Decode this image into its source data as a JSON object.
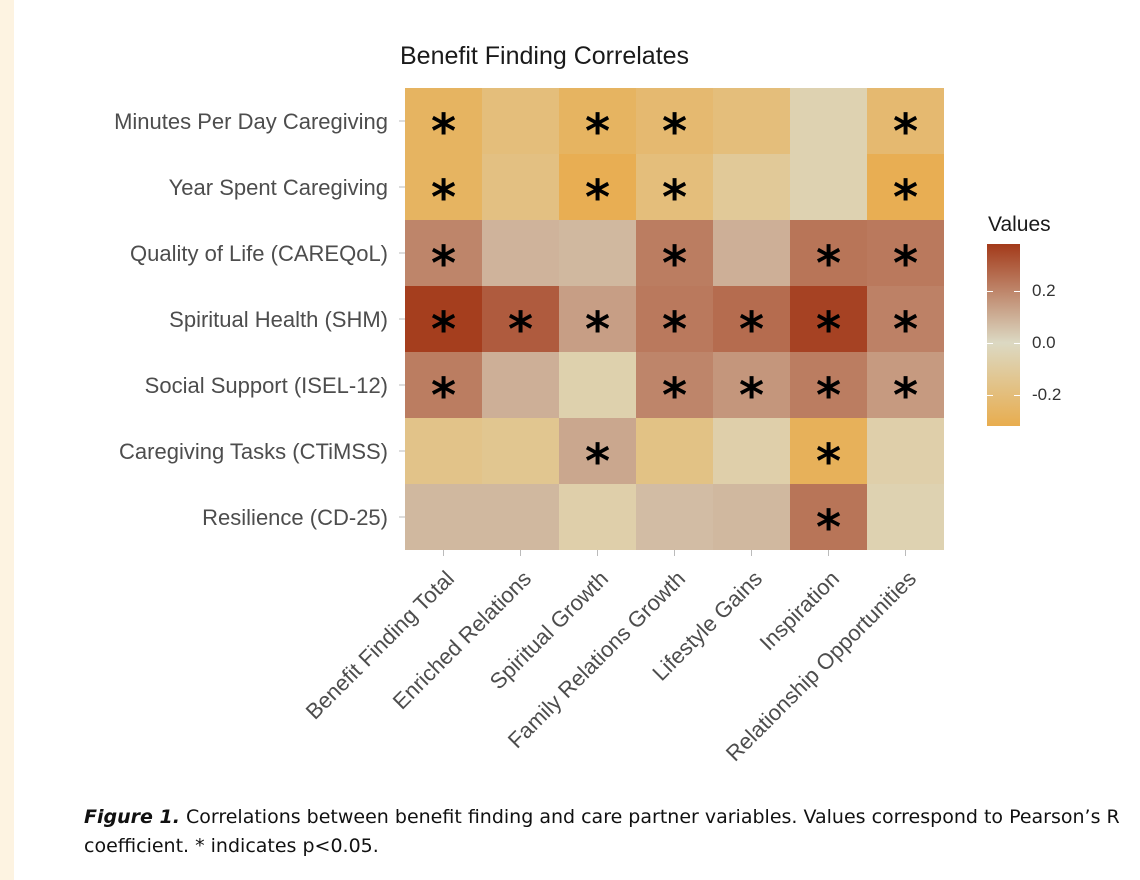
{
  "chart_data": {
    "type": "heatmap",
    "title": "Benefit Finding Correlates",
    "rows": [
      "Minutes Per Day Caregiving",
      "Year Spent Caregiving",
      "Quality of Life (CAREQoL)",
      "Spiritual Health (SHM)",
      "Social Support (ISEL-12)",
      "Caregiving Tasks (CTiMSS)",
      "Resilience (CD-25)"
    ],
    "columns": [
      "Benefit Finding Total",
      "Enriched Relations",
      "Spiritual Growth",
      "Family Relations Growth",
      "Lifestyle Gains",
      "Inspiration",
      "Relationship Opportunities"
    ],
    "values": [
      [
        -0.27,
        -0.2,
        -0.27,
        -0.23,
        -0.2,
        -0.05,
        -0.23
      ],
      [
        -0.27,
        -0.18,
        -0.31,
        -0.2,
        -0.12,
        -0.05,
        -0.31
      ],
      [
        0.2,
        0.09,
        0.08,
        0.22,
        0.1,
        0.24,
        0.23
      ],
      [
        0.37,
        0.3,
        0.14,
        0.23,
        0.26,
        0.36,
        0.21
      ],
      [
        0.22,
        0.1,
        -0.06,
        0.2,
        0.16,
        0.22,
        0.15
      ],
      [
        -0.16,
        -0.14,
        0.12,
        -0.17,
        -0.07,
        -0.29,
        -0.07
      ],
      [
        0.08,
        0.08,
        -0.07,
        0.07,
        0.08,
        0.24,
        -0.05
      ]
    ],
    "significant": [
      [
        true,
        false,
        true,
        true,
        false,
        false,
        true
      ],
      [
        true,
        false,
        true,
        true,
        false,
        false,
        true
      ],
      [
        true,
        false,
        false,
        true,
        false,
        true,
        true
      ],
      [
        true,
        true,
        true,
        true,
        true,
        true,
        true
      ],
      [
        true,
        false,
        false,
        true,
        true,
        true,
        true
      ],
      [
        false,
        false,
        true,
        false,
        false,
        true,
        false
      ],
      [
        false,
        false,
        false,
        false,
        false,
        true,
        false
      ]
    ],
    "significance_marker": "*",
    "legend": {
      "title": "Values",
      "ticks": [
        0.2,
        0.0,
        -0.2
      ],
      "tick_labels": [
        "0.2",
        "0.0",
        "-0.2"
      ],
      "range": [
        -0.32,
        0.38
      ],
      "placement": "right"
    },
    "colors": {
      "low": "#e8ad4f",
      "mid": "#dcd9c3",
      "high": "#a33a1a"
    }
  },
  "caption": {
    "label": "Figure 1.",
    "text": " Correlations between benefit finding and care partner variables. Values correspond to Pearson’s R coefficient. * indicates p<0.05."
  }
}
